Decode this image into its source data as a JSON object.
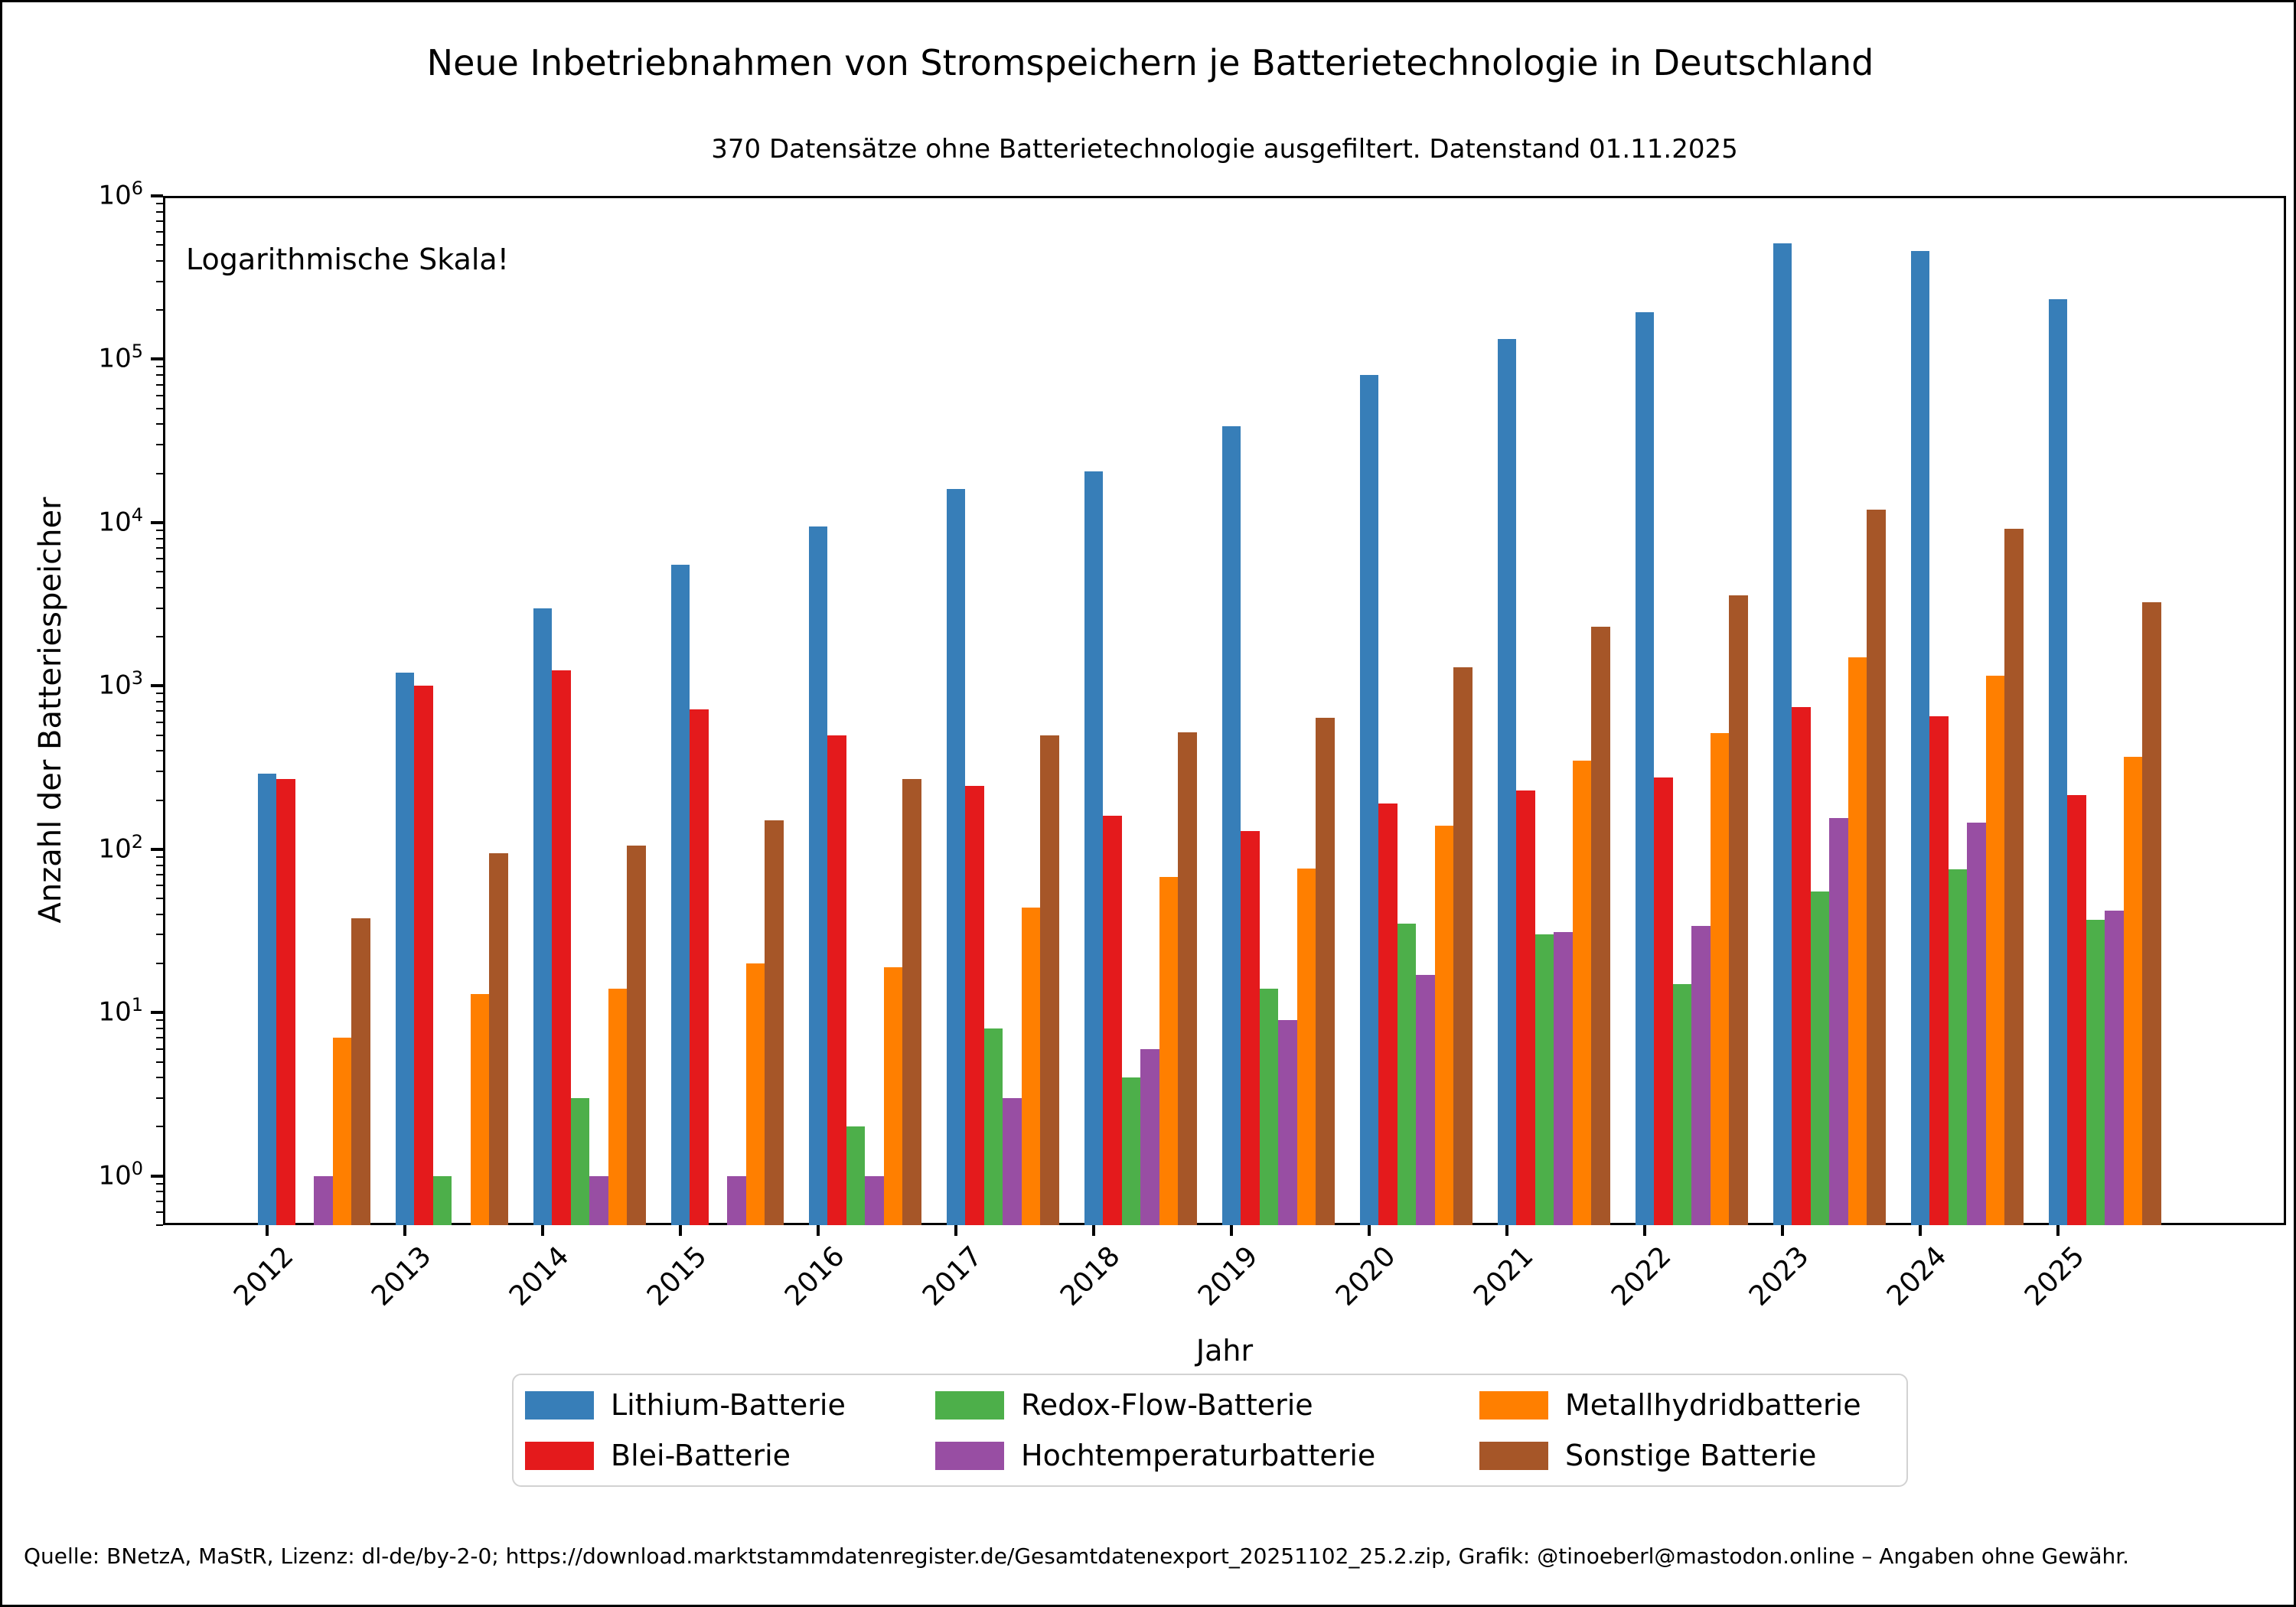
{
  "figure": {
    "title": "Neue Inbetriebnahmen von Stromspeichern je Batterietechnologie in Deutschland",
    "subtitle": "370 Datensätze ohne Batterietechnologie ausgefiltert. Datenstand 01.11.2025",
    "annotation": "Logarithmische Skala!",
    "xlabel": "Jahr",
    "ylabel": "Anzahl der Batteriespeicher",
    "footer": "Quelle: BNetzA, MaStR, Lizenz: dl-de/by-2-0; https://download.marktstammdatenregister.de/Gesamtdatenexport_20251102_25.2.zip, Grafik: @tinoeberl@mastodon.online – Angaben ohne Gewähr.",
    "background_color": "#ffffff",
    "text_color": "#000000"
  },
  "chart_data": {
    "type": "bar",
    "scale": "log",
    "title": "Neue Inbetriebnahmen von Stromspeichern je Batterietechnologie in Deutschland",
    "xlabel": "Jahr",
    "ylabel": "Anzahl der Batteriespeicher",
    "grid": false,
    "legend_position": "bottom",
    "ylim": [
      0.5,
      1000000
    ],
    "ytick_exponents": [
      0,
      1,
      2,
      3,
      4,
      5,
      6
    ],
    "categories": [
      "2012",
      "2013",
      "2014",
      "2015",
      "2016",
      "2017",
      "2018",
      "2019",
      "2020",
      "2021",
      "2022",
      "2023",
      "2024",
      "2025"
    ],
    "series": [
      {
        "name": "Lithium-Batterie",
        "color": "#377eb8",
        "values": [
          290,
          1200,
          3000,
          5500,
          9500,
          16000,
          20500,
          39000,
          80000,
          133000,
          195000,
          515000,
          460000,
          232000
        ]
      },
      {
        "name": "Blei-Batterie",
        "color": "#e41a1c",
        "values": [
          270,
          1000,
          1250,
          720,
          500,
          245,
          160,
          130,
          190,
          230,
          275,
          740,
          650,
          215
        ]
      },
      {
        "name": "Redox-Flow-Batterie",
        "color": "#4daf4a",
        "values": [
          0,
          1,
          3,
          0,
          2,
          8,
          4,
          14,
          35,
          30,
          15,
          55,
          75,
          37
        ]
      },
      {
        "name": "Hochtemperaturbatterie",
        "color": "#984ea3",
        "values": [
          1,
          0,
          1,
          1,
          1,
          3,
          6,
          9,
          17,
          31,
          34,
          155,
          145,
          42
        ]
      },
      {
        "name": "Metallhydridbatterie",
        "color": "#ff7f00",
        "values": [
          7,
          13,
          14,
          20,
          19,
          44,
          68,
          76,
          140,
          350,
          515,
          1500,
          1150,
          370
        ]
      },
      {
        "name": "Sonstige Batterie",
        "color": "#a65628",
        "values": [
          38,
          95,
          105,
          150,
          270,
          500,
          520,
          640,
          1300,
          2300,
          3600,
          12000,
          9200,
          3250
        ]
      }
    ]
  }
}
